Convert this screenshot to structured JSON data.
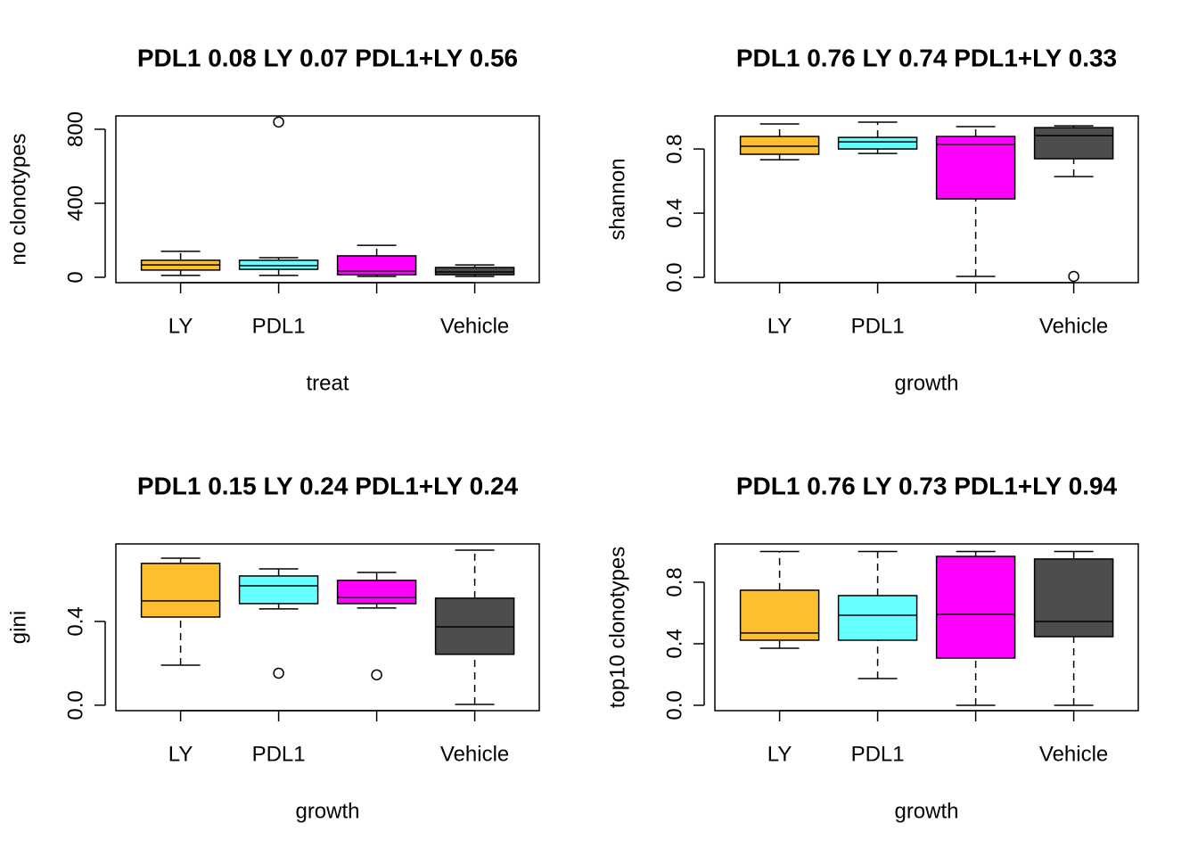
{
  "chart_data": [
    {
      "type": "box",
      "title": "PDL1 0.08 LY 0.07 PDL1+LY 0.56",
      "xlabel": "treat",
      "ylabel": "no clonotypes",
      "categories": [
        "LY",
        "PDL1",
        null,
        "Vehicle"
      ],
      "colors": [
        "#FDBF2D",
        "#66FFFF",
        "#FF00FF",
        "#4D4D4D"
      ],
      "ylim": [
        -29,
        872
      ],
      "yticks": [
        0,
        400,
        800
      ],
      "boxes": [
        {
          "min": 10,
          "q1": 39,
          "median": 67,
          "q3": 92,
          "max": 140
        },
        {
          "min": 10,
          "q1": 43,
          "median": 63,
          "q3": 92,
          "max": 106,
          "outliers": [
            839
          ]
        },
        {
          "min": 5,
          "q1": 14,
          "median": 34,
          "q3": 116,
          "max": 173
        },
        {
          "min": 5,
          "q1": 14,
          "median": 29,
          "q3": 53,
          "max": 67
        }
      ]
    },
    {
      "type": "box",
      "title": "PDL1 0.76 LY 0.74 PDL1+LY 0.33",
      "xlabel": "growth",
      "ylabel": "shannon",
      "categories": [
        "LY",
        "PDL1",
        null,
        "Vehicle"
      ],
      "colors": [
        "#FDBF2D",
        "#66FFFF",
        "#FF00FF",
        "#4D4D4D"
      ],
      "ylim": [
        -0.033,
        1.006
      ],
      "yticks": [
        {
          "value": 0,
          "label": "0.0"
        },
        0.4,
        0.8
      ],
      "boxes": [
        {
          "min": 0.733,
          "q1": 0.767,
          "median": 0.817,
          "q3": 0.878,
          "max": 0.956
        },
        {
          "min": 0.772,
          "q1": 0.8,
          "median": 0.844,
          "q3": 0.872,
          "max": 0.967
        },
        {
          "min": 0.006,
          "q1": 0.489,
          "median": 0.828,
          "q3": 0.878,
          "max": 0.939
        },
        {
          "min": 0.628,
          "q1": 0.739,
          "median": 0.883,
          "q3": 0.933,
          "max": 0.944,
          "outliers": [
            0.006
          ]
        }
      ]
    },
    {
      "type": "box",
      "title": "PDL1 0.15 LY 0.24 PDL1+LY 0.24",
      "xlabel": "growth",
      "ylabel": "gini",
      "categories": [
        "LY",
        "PDL1",
        null,
        "Vehicle"
      ],
      "colors": [
        "#FDBF2D",
        "#66FFFF",
        "#FF00FF",
        "#4D4D4D"
      ],
      "ylim": [
        -0.026,
        0.77
      ],
      "yticks": [
        {
          "value": 0,
          "label": "0.0"
        },
        0.4
      ],
      "boxes": [
        {
          "min": 0.191,
          "q1": 0.421,
          "median": 0.498,
          "q3": 0.677,
          "max": 0.702
        },
        {
          "min": 0.46,
          "q1": 0.485,
          "median": 0.57,
          "q3": 0.617,
          "max": 0.651,
          "outliers": [
            0.153
          ]
        },
        {
          "min": 0.464,
          "q1": 0.485,
          "median": 0.515,
          "q3": 0.596,
          "max": 0.634,
          "outliers": [
            0.145
          ]
        },
        {
          "min": 0.004,
          "q1": 0.243,
          "median": 0.374,
          "q3": 0.511,
          "max": 0.74
        }
      ]
    },
    {
      "type": "box",
      "title": "PDL1 0.76 LY 0.73 PDL1+LY 0.94",
      "xlabel": "growth",
      "ylabel": "top10 clonotypes",
      "categories": [
        "LY",
        "PDL1",
        null,
        "Vehicle"
      ],
      "colors": [
        "#FDBF2D",
        "#66FFFF",
        "#FF00FF",
        "#4D4D4D"
      ],
      "ylim": [
        -0.035,
        1.049
      ],
      "yticks": [
        {
          "value": 0,
          "label": "0.0"
        },
        0.4,
        0.8
      ],
      "boxes": [
        {
          "min": 0.371,
          "q1": 0.423,
          "median": 0.47,
          "q3": 0.748,
          "max": 1.0
        },
        {
          "min": 0.174,
          "q1": 0.423,
          "median": 0.585,
          "q3": 0.713,
          "max": 1.0
        },
        {
          "min": 0,
          "q1": 0.307,
          "median": 0.591,
          "q3": 0.968,
          "max": 1.0
        },
        {
          "min": 0,
          "q1": 0.446,
          "median": 0.545,
          "q3": 0.951,
          "max": 1.0
        }
      ]
    }
  ]
}
